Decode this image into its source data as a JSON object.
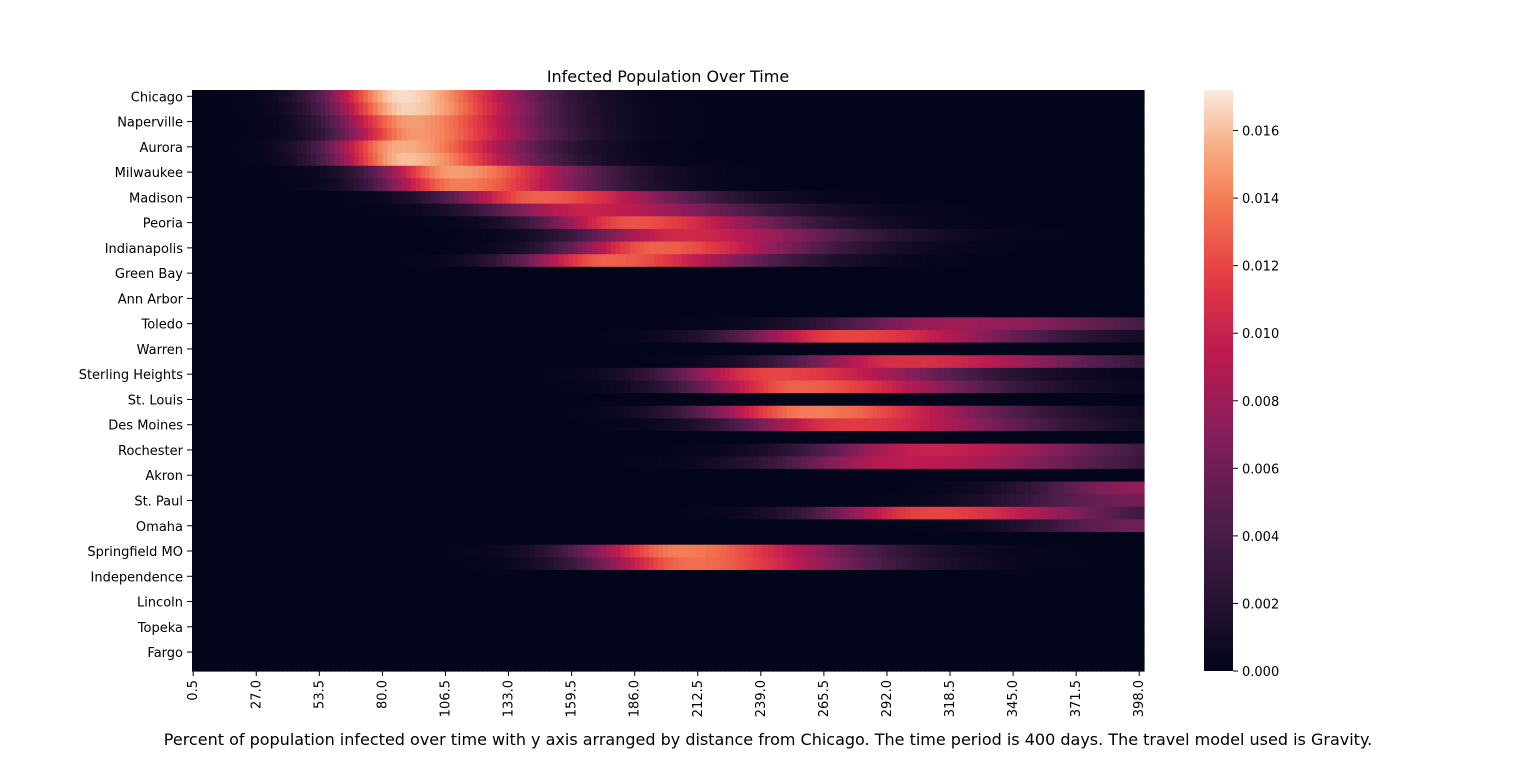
{
  "chart_data": {
    "type": "heatmap",
    "title": "Infected Population Over Time",
    "caption": "Percent of population infected over time with y axis arranged by distance from Chicago. The time period is 400 days. The travel model used is Gravity.",
    "xlabel": "",
    "ylabel": "",
    "x_range": [
      0,
      400
    ],
    "x_tick_labels": [
      "0.5",
      "27.0",
      "53.5",
      "80.0",
      "106.5",
      "133.0",
      "159.5",
      "186.0",
      "212.5",
      "239.0",
      "265.5",
      "292.0",
      "318.5",
      "345.0",
      "371.5",
      "398.0"
    ],
    "y_tick_labels": [
      "Chicago",
      "Naperville",
      "Aurora",
      "Milwaukee",
      "Madison",
      "Peoria",
      "Indianapolis",
      "Green Bay",
      "Ann Arbor",
      "Toledo",
      "Warren",
      "Sterling Heights",
      "St. Louis",
      "Des Moines",
      "Rochester",
      "Akron",
      "St. Paul",
      "Omaha",
      "Springfield MO",
      "Independence",
      "Lincoln",
      "Topeka",
      "Fargo"
    ],
    "row_count": 46,
    "colorbar": {
      "min": 0.0,
      "max": 0.0172,
      "ticks": [
        "0.000",
        "0.002",
        "0.004",
        "0.006",
        "0.008",
        "0.010",
        "0.012",
        "0.014",
        "0.016"
      ]
    },
    "grid": false,
    "colormap": "rocket",
    "rows": [
      {
        "peak_day": 88,
        "peak": 0.0168,
        "width": 40
      },
      {
        "peak_day": 90,
        "peak": 0.0165,
        "width": 40
      },
      {
        "peak_day": 92,
        "peak": 0.015,
        "width": 40
      },
      {
        "peak_day": 94,
        "peak": 0.0148,
        "width": 40
      },
      {
        "peak_day": 88,
        "peak": 0.0155,
        "width": 40
      },
      {
        "peak_day": 90,
        "peak": 0.016,
        "width": 40
      },
      {
        "peak_day": 110,
        "peak": 0.015,
        "width": 42
      },
      {
        "peak_day": 112,
        "peak": 0.014,
        "width": 42
      },
      {
        "peak_day": 145,
        "peak": 0.013,
        "width": 48
      },
      {
        "peak_day": 165,
        "peak": 0.01,
        "width": 55
      },
      {
        "peak_day": 185,
        "peak": 0.0125,
        "width": 50
      },
      {
        "peak_day": 205,
        "peak": 0.0105,
        "width": 55
      },
      {
        "peak_day": 195,
        "peak": 0.013,
        "width": 50
      },
      {
        "peak_day": 175,
        "peak": 0.013,
        "width": 50
      },
      {
        "peak_day": 0,
        "peak": 0.0,
        "width": 1
      },
      {
        "peak_day": 0,
        "peak": 0.0,
        "width": 1
      },
      {
        "peak_day": 0,
        "peak": 0.0,
        "width": 1
      },
      {
        "peak_day": 0,
        "peak": 0.0,
        "width": 1
      },
      {
        "peak_day": 320,
        "peak": 0.008,
        "width": 70
      },
      {
        "peak_day": 275,
        "peak": 0.012,
        "width": 60
      },
      {
        "peak_day": 0,
        "peak": 0.0,
        "width": 1
      },
      {
        "peak_day": 300,
        "peak": 0.011,
        "width": 65
      },
      {
        "peak_day": 245,
        "peak": 0.012,
        "width": 58
      },
      {
        "peak_day": 255,
        "peak": 0.013,
        "width": 58
      },
      {
        "peak_day": 0,
        "peak": 0.0,
        "width": 1
      },
      {
        "peak_day": 260,
        "peak": 0.014,
        "width": 60
      },
      {
        "peak_day": 275,
        "peak": 0.0115,
        "width": 60
      },
      {
        "peak_day": 0,
        "peak": 0.0,
        "width": 1
      },
      {
        "peak_day": 310,
        "peak": 0.01,
        "width": 65
      },
      {
        "peak_day": 300,
        "peak": 0.0095,
        "width": 70
      },
      {
        "peak_day": 0,
        "peak": 0.0,
        "width": 1
      },
      {
        "peak_day": 398,
        "peak": 0.0075,
        "width": 60
      },
      {
        "peak_day": 395,
        "peak": 0.006,
        "width": 70
      },
      {
        "peak_day": 310,
        "peak": 0.012,
        "width": 60
      },
      {
        "peak_day": 398,
        "peak": 0.006,
        "width": 60
      },
      {
        "peak_day": 0,
        "peak": 0.0,
        "width": 1
      },
      {
        "peak_day": 205,
        "peak": 0.014,
        "width": 55
      },
      {
        "peak_day": 210,
        "peak": 0.0135,
        "width": 55
      },
      {
        "peak_day": 0,
        "peak": 0.0,
        "width": 1
      },
      {
        "peak_day": 0,
        "peak": 0.0,
        "width": 1
      },
      {
        "peak_day": 0,
        "peak": 0.0,
        "width": 1
      },
      {
        "peak_day": 0,
        "peak": 0.0,
        "width": 1
      },
      {
        "peak_day": 0,
        "peak": 0.0,
        "width": 1
      },
      {
        "peak_day": 0,
        "peak": 0.0,
        "width": 1
      },
      {
        "peak_day": 0,
        "peak": 0.0,
        "width": 1
      },
      {
        "peak_day": 0,
        "peak": 0.0,
        "width": 1
      }
    ]
  }
}
